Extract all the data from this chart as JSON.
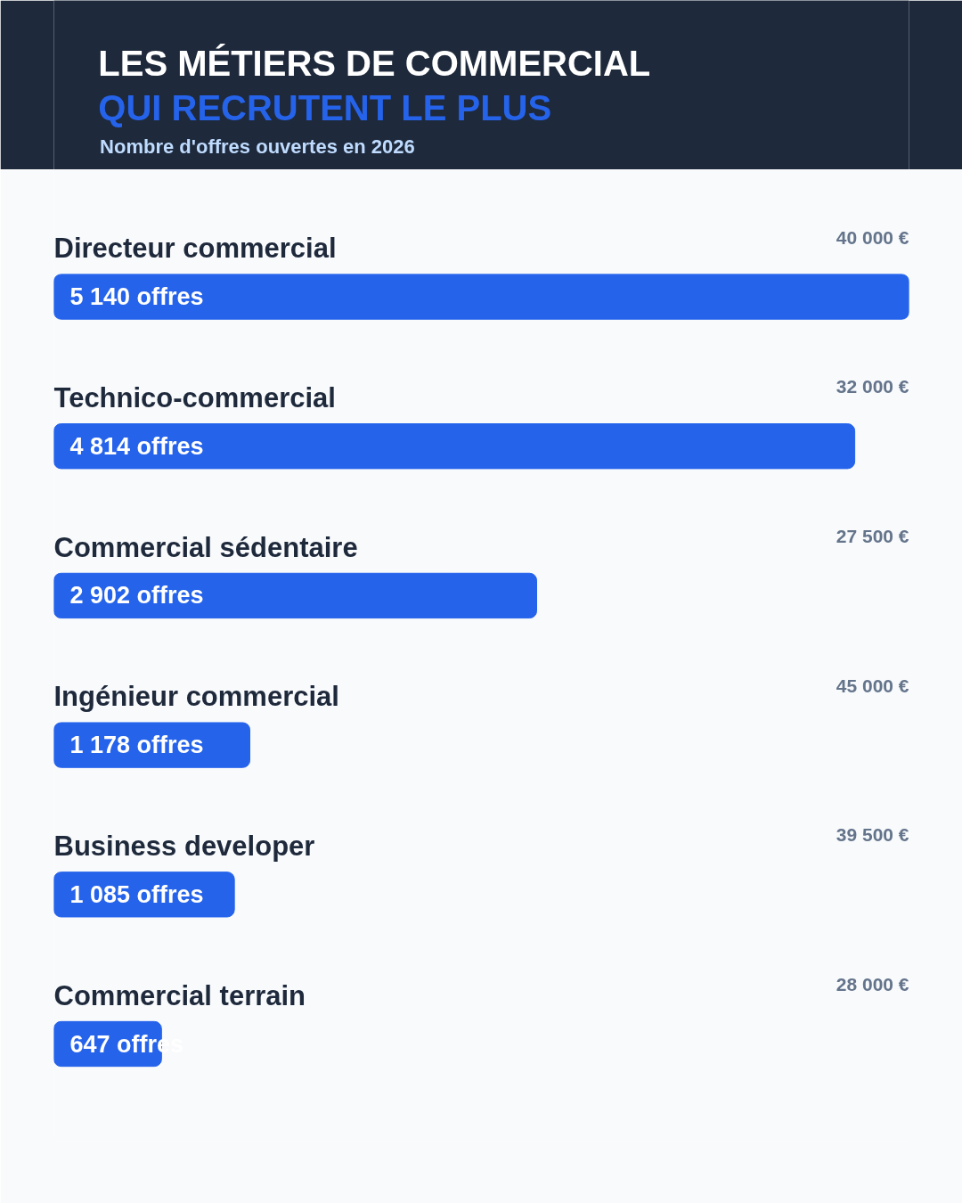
{
  "chart_data": {
    "type": "bar",
    "orientation": "horizontal",
    "title": "LES MÉTIERS DE COMMERCIAL",
    "subtitle": "QUI RECRUTENT LE PLUS",
    "categories": [
      "Directeur commercial",
      "Technico-commercial",
      "Commercial sédentaire",
      "Ingénieur commercial",
      "Business developer",
      "Commercial terrain"
    ],
    "values": [
      5140,
      4814,
      2902,
      1178,
      1085,
      647
    ],
    "value_labels": [
      "5 140 offres",
      "4 814 offres",
      "2 902 offres",
      "1 178 offres",
      "1 085 offres",
      "647 offres"
    ],
    "color": "#2563eb",
    "xlim": [
      0,
      5140
    ],
    "tick_labels": false,
    "annotations": [
      "40 000 €",
      "32 000 €",
      "27 500 €",
      "45 000 €",
      "39 500 €",
      "28 000 €",
      "Nombre d'offres ouvertes en 2026"
    ]
  }
}
